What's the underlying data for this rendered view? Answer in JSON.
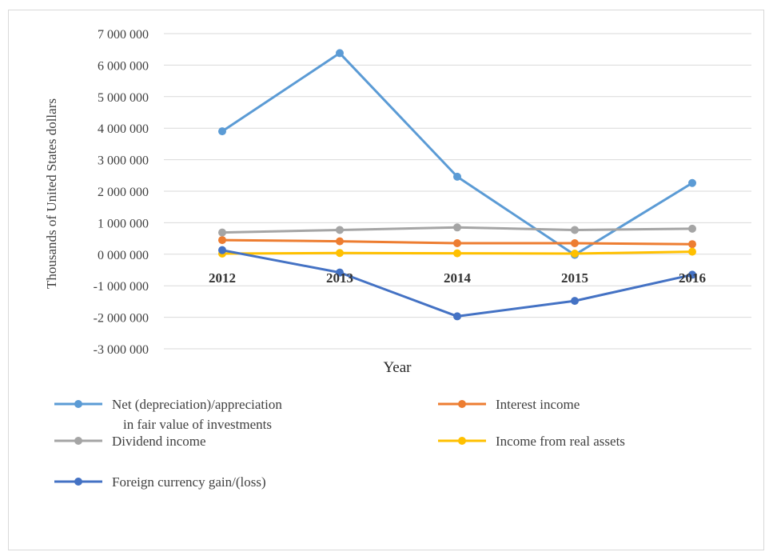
{
  "chart_data": {
    "type": "line",
    "xlabel": "Year",
    "ylabel": "Thousands  of United States dollars",
    "categories": [
      "2012",
      "2013",
      "2014",
      "2015",
      "2016"
    ],
    "ylim": [
      -3000000,
      7000000
    ],
    "yticks": [
      {
        "value": 7000000,
        "label": "7 000 000"
      },
      {
        "value": 6000000,
        "label": "6 000 000"
      },
      {
        "value": 5000000,
        "label": "5 000 000"
      },
      {
        "value": 4000000,
        "label": "4 000 000"
      },
      {
        "value": 3000000,
        "label": "3 000 000"
      },
      {
        "value": 2000000,
        "label": "2 000 000"
      },
      {
        "value": 1000000,
        "label": "1 000 000"
      },
      {
        "value": 0,
        "label": "0 000 000"
      },
      {
        "value": -1000000,
        "label": "-1 000 000"
      },
      {
        "value": -2000000,
        "label": "-2 000 000"
      },
      {
        "value": -3000000,
        "label": "-3 000 000"
      }
    ],
    "grid": true,
    "legend_position": "bottom",
    "series": [
      {
        "name_lines": [
          "Net (depreciation)/appreciation",
          "in fair value of investments"
        ],
        "color": "#5b9bd5",
        "values": [
          3900000,
          6380000,
          2460000,
          -20000,
          2260000
        ]
      },
      {
        "name_lines": [
          "Interest income"
        ],
        "color": "#ed7d31",
        "values": [
          450000,
          410000,
          350000,
          350000,
          320000
        ]
      },
      {
        "name_lines": [
          "Dividend income"
        ],
        "color": "#a5a5a5",
        "values": [
          690000,
          770000,
          850000,
          770000,
          810000
        ]
      },
      {
        "name_lines": [
          "Income from real assets"
        ],
        "color": "#ffc000",
        "values": [
          20000,
          40000,
          30000,
          20000,
          80000
        ]
      },
      {
        "name_lines": [
          "Foreign currency gain/(loss)"
        ],
        "color": "#4472c4",
        "values": [
          130000,
          -580000,
          -1970000,
          -1480000,
          -650000
        ]
      }
    ]
  }
}
